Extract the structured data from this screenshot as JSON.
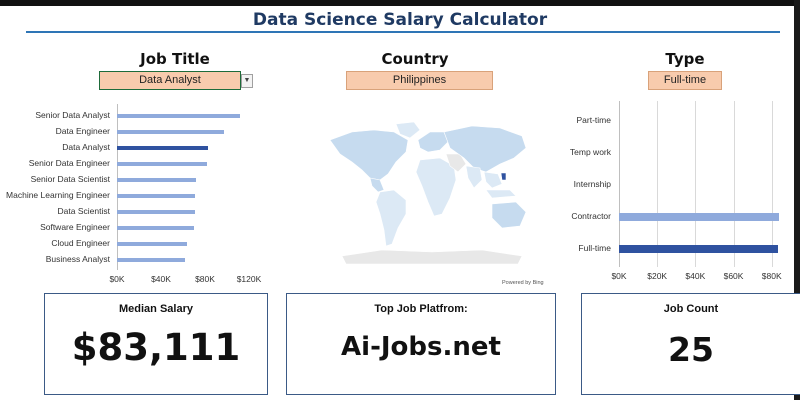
{
  "title": "Data Science Salary Calculator",
  "selectors": [
    {
      "label": "Job Title",
      "value": "Data Analyst"
    },
    {
      "label": "Country",
      "value": "Philippines"
    },
    {
      "label": "Type",
      "value": "Full-time"
    }
  ],
  "job_chart": {
    "categories": [
      "Senior Data Analyst",
      "Data Engineer",
      "Data Analyst",
      "Senior Data Engineer",
      "Senior Data Scientist",
      "Machine Learning Engineer",
      "Data Scientist",
      "Software Engineer",
      "Cloud Engineer",
      "Business Analyst"
    ],
    "values": [
      112000,
      97000,
      83111,
      82000,
      72000,
      71000,
      71000,
      70000,
      64000,
      62000
    ],
    "highlight": "Data Analyst",
    "ticks": [
      "$0K",
      "$40K",
      "$80K",
      "$120K"
    ],
    "xlim": [
      0,
      140000
    ]
  },
  "map": {
    "credit": "Powered by Bing",
    "colors": {
      "land": "#c6dbef",
      "light": "#dce9f5",
      "gray": "#e8e8e8",
      "highlight": "#2f52a0"
    }
  },
  "type_chart": {
    "categories": [
      "Part-time",
      "Temp work",
      "Internship",
      "Contractor",
      "Full-time"
    ],
    "values": [
      0,
      0,
      0,
      84000,
      83111
    ],
    "highlight": "Full-time",
    "ticks": [
      "$0K",
      "$20K",
      "$40K",
      "$60K",
      "$80K"
    ],
    "xlim": [
      0,
      88000
    ]
  },
  "cards": {
    "median": {
      "title": "Median Salary",
      "value": "$83,111"
    },
    "platform": {
      "title": "Top Job Platfrom:",
      "value": "Ai-Jobs.net"
    },
    "count": {
      "title": "Job Count",
      "value": "25"
    }
  },
  "colors": {
    "bar": "#8faadc",
    "bar_highlight": "#2f52a0",
    "selector_fill": "#f8cbad",
    "title": "#1f3a63"
  }
}
